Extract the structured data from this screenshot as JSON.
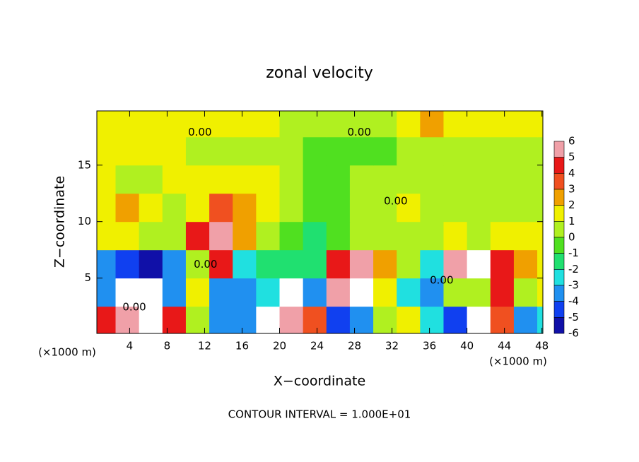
{
  "chart_data": {
    "type": "heatmap",
    "title": "zonal velocity",
    "x_label": "X−coordinate",
    "y_label": "Z−coordinate",
    "x_unit_label": "(×1000 m)",
    "footer": "CONTOUR INTERVAL = 1.000E+01",
    "xlim": [
      0.5,
      48.1
    ],
    "ylim": [
      0.1,
      19.8
    ],
    "xticks": [
      4,
      8,
      12,
      16,
      20,
      24,
      28,
      32,
      36,
      40,
      44,
      48
    ],
    "yticks": [
      5,
      10,
      15
    ],
    "x": [
      1.25,
      3.75,
      6.25,
      8.75,
      11.25,
      13.75,
      16.25,
      18.75,
      21.25,
      23.75,
      26.25,
      28.75,
      31.25,
      33.75,
      36.25,
      38.75,
      41.25,
      43.75,
      46.25,
      48.75
    ],
    "z": [
      1.25,
      3.75,
      6.25,
      8.75,
      11.25,
      13.75,
      16.25,
      18.75
    ],
    "values": [
      [
        4,
        6,
        8,
        4,
        0,
        -4,
        -4,
        8,
        5,
        3,
        -5,
        -4,
        0,
        1,
        -3,
        -5,
        -8,
        3,
        -4,
        -3
      ],
      [
        -4,
        -8,
        -8,
        -4,
        1,
        -4,
        -4,
        -3,
        -8,
        -4,
        5,
        8,
        1,
        -3,
        -4,
        0,
        0,
        4,
        0,
        1
      ],
      [
        -4,
        -5,
        -6,
        -4,
        0,
        4,
        -3,
        -2,
        -2,
        -2,
        4,
        5,
        2,
        0,
        -3,
        5,
        8,
        4,
        2,
        1
      ],
      [
        1,
        1,
        0,
        0,
        4,
        5,
        2,
        0,
        -1,
        -2,
        -1,
        0,
        0,
        0,
        0,
        1,
        0,
        1,
        1,
        1
      ],
      [
        1,
        2,
        1,
        0,
        1,
        3,
        2,
        1,
        0,
        -1,
        -1,
        0,
        0,
        1,
        0,
        0,
        0,
        0,
        0,
        0
      ],
      [
        1,
        0,
        0,
        1,
        1,
        1,
        1,
        1,
        0,
        -1,
        -1,
        0,
        0,
        0,
        0,
        0,
        0,
        0,
        0,
        0
      ],
      [
        1,
        1,
        1,
        1,
        0,
        0,
        0,
        0,
        0,
        -1,
        -1,
        -1,
        -1,
        0,
        0,
        0,
        0,
        0,
        0,
        0
      ],
      [
        1,
        1,
        1,
        1,
        1,
        1,
        1,
        1,
        0,
        0,
        0,
        0,
        0,
        1,
        2,
        1,
        1,
        1,
        1,
        1
      ]
    ],
    "colorbar_ticks": [
      6,
      5,
      4,
      3,
      2,
      1,
      0,
      -1,
      -2,
      -3,
      -4,
      -5,
      -6
    ],
    "colors": [
      "#f0a0a8",
      "#e81818",
      "#f05020",
      "#f0a000",
      "#f0f000",
      "#b0f020",
      "#50e020",
      "#20e070",
      "#20e0e0",
      "#2090f0",
      "#1040f0",
      "#1010a8",
      "#8010a0"
    ],
    "out_of_range_color": "#ffffff",
    "contour_labels": [
      {
        "text": "0.00",
        "x": 11.5,
        "z": 17.9
      },
      {
        "text": "0.00",
        "x": 28.5,
        "z": 17.9
      },
      {
        "text": "0.00",
        "x": 32.4,
        "z": 11.8
      },
      {
        "text": "0.00",
        "x": 12.1,
        "z": 6.2
      },
      {
        "text": "0.00",
        "x": 4.5,
        "z": 2.4
      },
      {
        "text": "0.00",
        "x": 37.3,
        "z": 4.8
      }
    ]
  }
}
